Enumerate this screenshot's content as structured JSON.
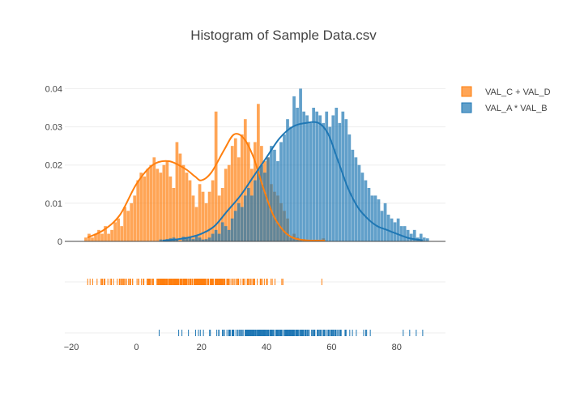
{
  "chart_data": {
    "type": "histogram",
    "title": "Histogram of Sample Data.csv",
    "xlabel": "",
    "ylabel": "",
    "xlim": [
      -22,
      95
    ],
    "ylim": [
      0,
      0.042
    ],
    "x_ticks": [
      -20,
      0,
      20,
      40,
      60,
      80
    ],
    "y_ticks": [
      0,
      0.01,
      0.02,
      0.03,
      0.04
    ],
    "y_tick_labels": [
      "0",
      "0.01",
      "0.02",
      "0.03",
      "0.04"
    ],
    "grid": true,
    "legend_position": "top-right",
    "series": [
      {
        "name": "VAL_C + VAL_D",
        "color": "#ff7f0e",
        "bin_start": -16,
        "bin_width": 1,
        "densities": [
          0.001,
          0.002,
          0.001,
          0.002,
          0.003,
          0.002,
          0.004,
          0.002,
          0.003,
          0.005,
          0.006,
          0.004,
          0.009,
          0.008,
          0.01,
          0.012,
          0.016,
          0.018,
          0.017,
          0.019,
          0.02,
          0.022,
          0.019,
          0.018,
          0.02,
          0.021,
          0.017,
          0.014,
          0.026,
          0.023,
          0.02,
          0.018,
          0.016,
          0.012,
          0.009,
          0.015,
          0.013,
          0.01,
          0.013,
          0.016,
          0.034,
          0.012,
          0.014,
          0.019,
          0.02,
          0.025,
          0.027,
          0.022,
          0.028,
          0.032,
          0.026,
          0.019,
          0.026,
          0.036,
          0.025,
          0.021,
          0.022,
          0.015,
          0.013,
          0.012,
          0.01,
          0.008,
          0.006,
          0.001,
          0.002,
          0.001,
          0.0006,
          0.0006,
          0.0004,
          0,
          0,
          0,
          0,
          0.0008
        ],
        "kde": [
          [
            -15,
            0.001
          ],
          [
            -10,
            0.003
          ],
          [
            -5,
            0.007
          ],
          [
            0,
            0.015
          ],
          [
            5,
            0.02
          ],
          [
            10,
            0.021
          ],
          [
            15,
            0.019
          ],
          [
            18,
            0.017
          ],
          [
            20,
            0.016
          ],
          [
            23,
            0.018
          ],
          [
            27,
            0.024
          ],
          [
            30,
            0.028
          ],
          [
            33,
            0.027
          ],
          [
            36,
            0.022
          ],
          [
            39,
            0.014
          ],
          [
            42,
            0.007
          ],
          [
            45,
            0.003
          ],
          [
            48,
            0.001
          ],
          [
            52,
            0.0003
          ],
          [
            58,
            0.0002
          ]
        ],
        "rug_range": [
          -15,
          48
        ],
        "rug_outliers": [
          57
        ]
      },
      {
        "name": "VAL_A * VAL_B",
        "color": "#1f77b4",
        "bin_start": 7,
        "bin_width": 1,
        "densities": [
          0.0005,
          0,
          0.0006,
          0.0008,
          0.001,
          0.0005,
          0,
          0.0012,
          0.0008,
          0.001,
          0.0006,
          0.0015,
          0.001,
          0.0005,
          0.0006,
          0.001,
          0.002,
          0.003,
          0.002,
          0.005,
          0.004,
          0.003,
          0.006,
          0.008,
          0.01,
          0.009,
          0.012,
          0.014,
          0.012,
          0.016,
          0.019,
          0.02,
          0.018,
          0.022,
          0.025,
          0.024,
          0.021,
          0.026,
          0.028,
          0.032,
          0.03,
          0.038,
          0.035,
          0.04,
          0.034,
          0.033,
          0.031,
          0.035,
          0.034,
          0.033,
          0.031,
          0.034,
          0.03,
          0.033,
          0.035,
          0.031,
          0.034,
          0.032,
          0.028,
          0.024,
          0.022,
          0.02,
          0.018,
          0.016,
          0.014,
          0.012,
          0.012,
          0.011,
          0.008,
          0.01,
          0.007,
          0.006,
          0.005,
          0.006,
          0.004,
          0.004,
          0.003,
          0.002,
          0.003,
          0.001,
          0.002,
          0.001,
          0.0008
        ],
        "kde": [
          [
            8,
            0.0002
          ],
          [
            12,
            0.0005
          ],
          [
            16,
            0.001
          ],
          [
            20,
            0.002
          ],
          [
            24,
            0.004
          ],
          [
            28,
            0.008
          ],
          [
            32,
            0.012
          ],
          [
            36,
            0.017
          ],
          [
            40,
            0.022
          ],
          [
            44,
            0.027
          ],
          [
            48,
            0.03
          ],
          [
            52,
            0.031
          ],
          [
            56,
            0.031
          ],
          [
            59,
            0.028
          ],
          [
            62,
            0.021
          ],
          [
            65,
            0.014
          ],
          [
            68,
            0.009
          ],
          [
            71,
            0.006
          ],
          [
            74,
            0.004
          ],
          [
            77,
            0.003
          ],
          [
            80,
            0.002
          ],
          [
            84,
            0.0008
          ],
          [
            88,
            0.0003
          ]
        ],
        "rug_range": [
          18,
          72
        ],
        "rug_outliers": [
          7,
          13,
          14,
          16,
          82,
          84,
          86,
          88
        ]
      }
    ]
  }
}
